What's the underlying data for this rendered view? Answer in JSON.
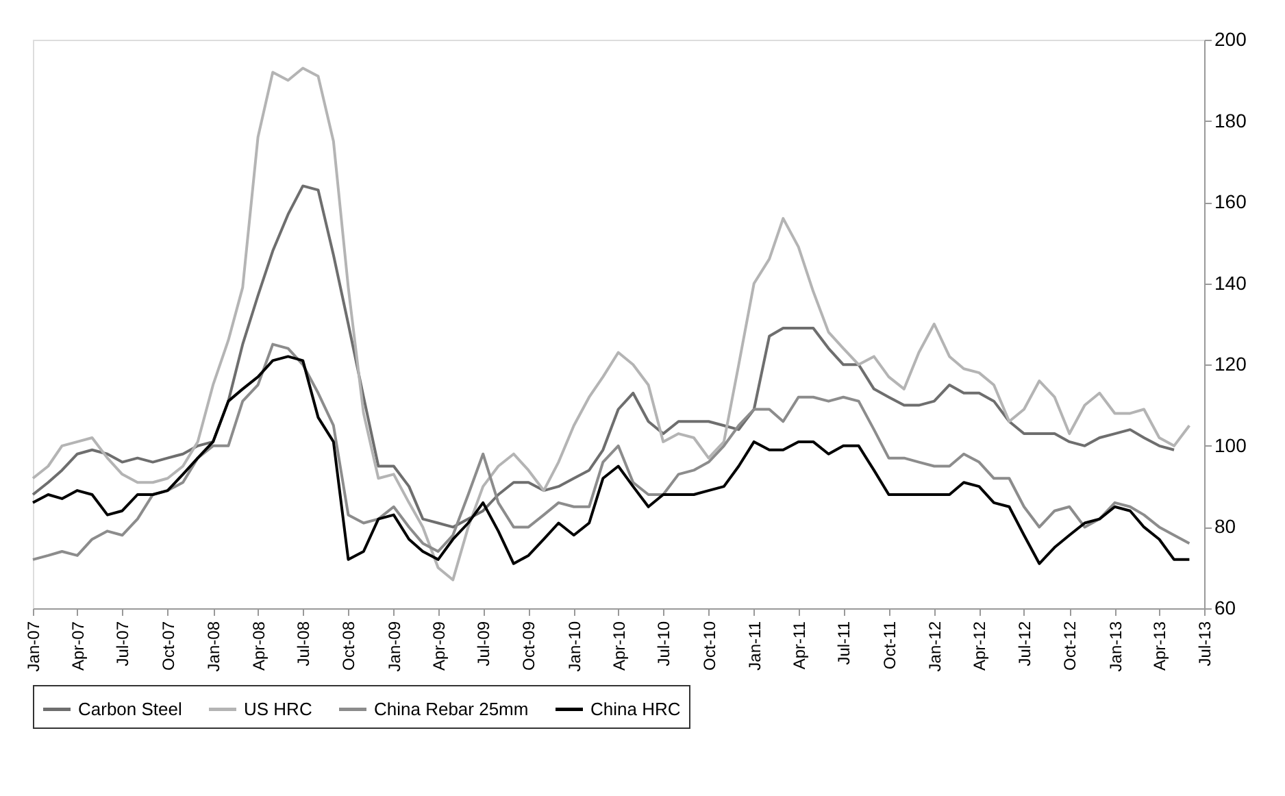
{
  "chart_data": {
    "type": "line",
    "x": [
      "2007-01",
      "2007-02",
      "2007-03",
      "2007-04",
      "2007-05",
      "2007-06",
      "2007-07",
      "2007-08",
      "2007-09",
      "2007-10",
      "2007-11",
      "2007-12",
      "2008-01",
      "2008-02",
      "2008-03",
      "2008-04",
      "2008-05",
      "2008-06",
      "2008-07",
      "2008-08",
      "2008-09",
      "2008-10",
      "2008-11",
      "2008-12",
      "2009-01",
      "2009-02",
      "2009-03",
      "2009-04",
      "2009-05",
      "2009-06",
      "2009-07",
      "2009-08",
      "2009-09",
      "2009-10",
      "2009-11",
      "2009-12",
      "2010-01",
      "2010-02",
      "2010-03",
      "2010-04",
      "2010-05",
      "2010-06",
      "2010-07",
      "2010-08",
      "2010-09",
      "2010-10",
      "2010-11",
      "2010-12",
      "2011-01",
      "2011-02",
      "2011-03",
      "2011-04",
      "2011-05",
      "2011-06",
      "2011-07",
      "2011-08",
      "2011-09",
      "2011-10",
      "2011-11",
      "2011-12",
      "2012-01",
      "2012-02",
      "2012-03",
      "2012-04",
      "2012-05",
      "2012-06",
      "2012-07",
      "2012-08",
      "2012-09",
      "2012-10",
      "2012-11",
      "2012-12",
      "2013-01",
      "2013-02",
      "2013-03",
      "2013-04",
      "2013-05",
      "2013-06"
    ],
    "series": [
      {
        "name": "Carbon Steel",
        "color": "#6e6e6e",
        "values": [
          88,
          91,
          94,
          98,
          99,
          98,
          96,
          97,
          96,
          97,
          98,
          100,
          101,
          111,
          125,
          137,
          148,
          157,
          164,
          163,
          147,
          130,
          112,
          95,
          95,
          90,
          82,
          81,
          80,
          82,
          84,
          88,
          91,
          91,
          89,
          90,
          92,
          94,
          99,
          109,
          113,
          106,
          103,
          106,
          106,
          106,
          105,
          104,
          109,
          127,
          129,
          129,
          129,
          124,
          120,
          120,
          114,
          112,
          110,
          110,
          111,
          115,
          113,
          113,
          111,
          106,
          103,
          103,
          103,
          101,
          100,
          102,
          103,
          104,
          102,
          100,
          99,
          null
        ]
      },
      {
        "name": "US HRC",
        "color": "#b4b4b4",
        "values": [
          92,
          95,
          100,
          101,
          102,
          97,
          93,
          91,
          91,
          92,
          95,
          101,
          115,
          126,
          139,
          176,
          192,
          190,
          193,
          191,
          175,
          139,
          108,
          92,
          93,
          86,
          80,
          70,
          67,
          80,
          90,
          95,
          98,
          94,
          89,
          96,
          105,
          112,
          117,
          123,
          120,
          115,
          101,
          103,
          102,
          97,
          101,
          120,
          140,
          146,
          156,
          149,
          138,
          128,
          124,
          120,
          122,
          117,
          114,
          123,
          130,
          122,
          119,
          118,
          115,
          106,
          109,
          116,
          112,
          103,
          110,
          113,
          108,
          108,
          109,
          102,
          100,
          105
        ]
      },
      {
        "name": "China Rebar 25mm",
        "color": "#8c8c8c",
        "values": [
          72,
          73,
          74,
          73,
          77,
          79,
          78,
          82,
          88,
          89,
          91,
          97,
          100,
          100,
          111,
          115,
          125,
          124,
          120,
          113,
          105,
          83,
          81,
          82,
          85,
          80,
          76,
          74,
          78,
          88,
          98,
          86,
          80,
          80,
          83,
          86,
          85,
          85,
          96,
          100,
          91,
          88,
          88,
          93,
          94,
          96,
          100,
          105,
          109,
          109,
          106,
          112,
          112,
          111,
          112,
          111,
          104,
          97,
          97,
          96,
          95,
          95,
          98,
          96,
          92,
          92,
          85,
          80,
          84,
          85,
          80,
          82,
          86,
          85,
          83,
          80,
          78,
          76
        ]
      },
      {
        "name": "China HRC",
        "color": "#000000",
        "values": [
          86,
          88,
          87,
          89,
          88,
          83,
          84,
          88,
          88,
          89,
          93,
          97,
          101,
          111,
          114,
          117,
          121,
          122,
          121,
          107,
          101,
          72,
          74,
          82,
          83,
          77,
          74,
          72,
          77,
          81,
          86,
          79,
          71,
          73,
          77,
          81,
          78,
          81,
          92,
          95,
          90,
          85,
          88,
          88,
          88,
          89,
          90,
          95,
          101,
          99,
          99,
          101,
          101,
          98,
          100,
          100,
          94,
          88,
          88,
          88,
          88,
          88,
          91,
          90,
          86,
          85,
          78,
          71,
          75,
          78,
          81,
          82,
          85,
          84,
          80,
          77,
          72,
          72
        ]
      }
    ],
    "xlim": [
      "2007-01",
      "2013-07"
    ],
    "xticks": [
      {
        "value": "2007-01",
        "label": "Jan-07"
      },
      {
        "value": "2007-04",
        "label": "Apr-07"
      },
      {
        "value": "2007-07",
        "label": "Jul-07"
      },
      {
        "value": "2007-10",
        "label": "Oct-07"
      },
      {
        "value": "2008-01",
        "label": "Jan-08"
      },
      {
        "value": "2008-04",
        "label": "Apr-08"
      },
      {
        "value": "2008-07",
        "label": "Jul-08"
      },
      {
        "value": "2008-10",
        "label": "Oct-08"
      },
      {
        "value": "2009-01",
        "label": "Jan-09"
      },
      {
        "value": "2009-04",
        "label": "Apr-09"
      },
      {
        "value": "2009-07",
        "label": "Jul-09"
      },
      {
        "value": "2009-10",
        "label": "Oct-09"
      },
      {
        "value": "2010-01",
        "label": "Jan-10"
      },
      {
        "value": "2010-04",
        "label": "Apr-10"
      },
      {
        "value": "2010-07",
        "label": "Jul-10"
      },
      {
        "value": "2010-10",
        "label": "Oct-10"
      },
      {
        "value": "2011-01",
        "label": "Jan-11"
      },
      {
        "value": "2011-04",
        "label": "Apr-11"
      },
      {
        "value": "2011-07",
        "label": "Jul-11"
      },
      {
        "value": "2011-10",
        "label": "Oct-11"
      },
      {
        "value": "2012-01",
        "label": "Jan-12"
      },
      {
        "value": "2012-04",
        "label": "Apr-12"
      },
      {
        "value": "2012-07",
        "label": "Jul-12"
      },
      {
        "value": "2012-10",
        "label": "Oct-12"
      },
      {
        "value": "2013-01",
        "label": "Jan-13"
      },
      {
        "value": "2013-04",
        "label": "Apr-13"
      },
      {
        "value": "2013-07",
        "label": "Jul-13"
      }
    ],
    "ylim": [
      60,
      200
    ],
    "yticks": [
      60,
      80,
      100,
      120,
      140,
      160,
      180,
      200
    ],
    "grid": false,
    "legend": "bottom",
    "marker": "none",
    "line_style": "solid"
  }
}
